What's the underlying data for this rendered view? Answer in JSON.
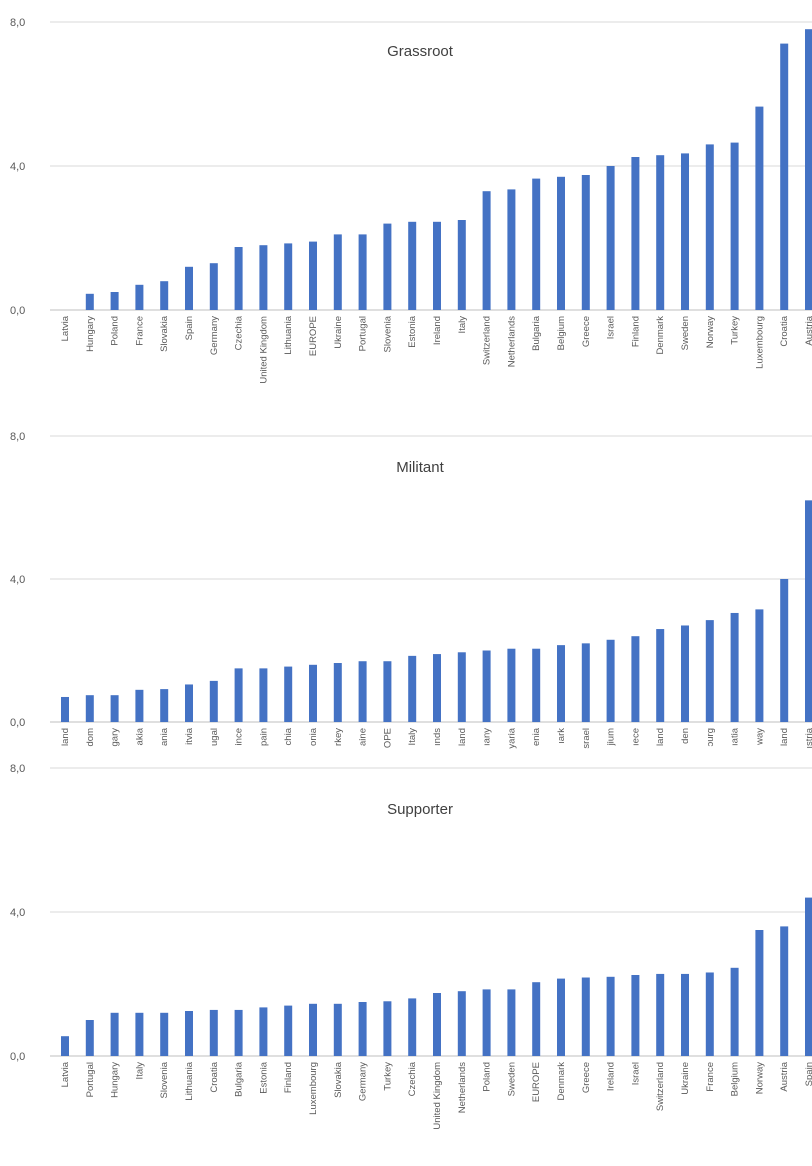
{
  "chart_data": [
    {
      "type": "bar",
      "title": "Grassroot",
      "ylim": [
        0,
        8
      ],
      "ytick_labels": [
        "0,0",
        "4,0",
        "8,0"
      ],
      "color": "#4472c4",
      "grid": true,
      "categories": [
        "Latvia",
        "Hungary",
        "Poland",
        "France",
        "Slovakia",
        "Spain",
        "Germany",
        "Czechia",
        "United Kingdom",
        "Lithuania",
        "EUROPE",
        "Ukraine",
        "Portugal",
        "Slovenia",
        "Estonia",
        "Ireland",
        "Italy",
        "Switzerland",
        "Netherlands",
        "Bulgaria",
        "Belgium",
        "Greece",
        "Israel",
        "Finland",
        "Denmark",
        "Sweden",
        "Norway",
        "Turkey",
        "Luxembourg",
        "Croatia",
        "Austria"
      ],
      "values": [
        0.0,
        0.45,
        0.5,
        0.7,
        0.8,
        1.2,
        1.3,
        1.75,
        1.8,
        1.85,
        1.9,
        2.1,
        2.1,
        2.4,
        2.45,
        2.45,
        2.5,
        3.3,
        3.35,
        3.65,
        3.7,
        3.75,
        4.0,
        4.25,
        4.3,
        4.35,
        4.6,
        4.65,
        5.65,
        7.4,
        7.8
      ]
    },
    {
      "type": "bar",
      "title": "Militant",
      "ylim": [
        0,
        8
      ],
      "ytick_labels": [
        "0,0",
        "4,0",
        "8,0"
      ],
      "color": "#4472c4",
      "grid": true,
      "categories": [
        "land",
        "dom",
        "gary",
        "akia",
        "ania",
        "itvia",
        "ugal",
        "ince",
        "pain",
        "chia",
        "onia",
        "rkey",
        "aine",
        "OPE",
        "Italy",
        "ınds",
        "land",
        "ıany",
        "yaria",
        "enia",
        "ıark",
        "srael",
        "jium",
        "ıece",
        "land",
        "den",
        "ɔurg",
        "ıatia",
        "way",
        "land",
        "ıstria"
      ],
      "values": [
        0.7,
        0.75,
        0.75,
        0.9,
        0.92,
        1.05,
        1.15,
        1.5,
        1.5,
        1.55,
        1.6,
        1.65,
        1.7,
        1.7,
        1.85,
        1.9,
        1.95,
        2.0,
        2.05,
        2.05,
        2.15,
        2.2,
        2.3,
        2.4,
        2.6,
        2.7,
        2.85,
        3.05,
        3.15,
        4.0,
        6.2
      ]
    },
    {
      "type": "bar",
      "title": "Supporter",
      "ylim": [
        0,
        8
      ],
      "ytick_labels": [
        "0,0",
        "4,0",
        "8,0"
      ],
      "color": "#4472c4",
      "grid": true,
      "categories": [
        "Latvia",
        "Portugal",
        "Hungary",
        "Italy",
        "Slovenia",
        "Lithuania",
        "Croatia",
        "Bulgaria",
        "Estonia",
        "Finland",
        "Luxembourg",
        "Slovakia",
        "Germany",
        "Turkey",
        "Czechia",
        "United Kingdom",
        "Netherlands",
        "Poland",
        "Sweden",
        "EUROPE",
        "Denmark",
        "Greece",
        "Ireland",
        "Israel",
        "Switzerland",
        "Ukraine",
        "France",
        "Belgium",
        "Norway",
        "Austria",
        "Spain"
      ],
      "values": [
        0.55,
        1.0,
        1.2,
        1.2,
        1.2,
        1.25,
        1.28,
        1.28,
        1.35,
        1.4,
        1.45,
        1.45,
        1.5,
        1.52,
        1.6,
        1.75,
        1.8,
        1.85,
        1.85,
        2.05,
        2.15,
        2.18,
        2.2,
        2.25,
        2.28,
        2.28,
        2.32,
        2.45,
        3.5,
        3.6,
        4.4
      ]
    }
  ]
}
